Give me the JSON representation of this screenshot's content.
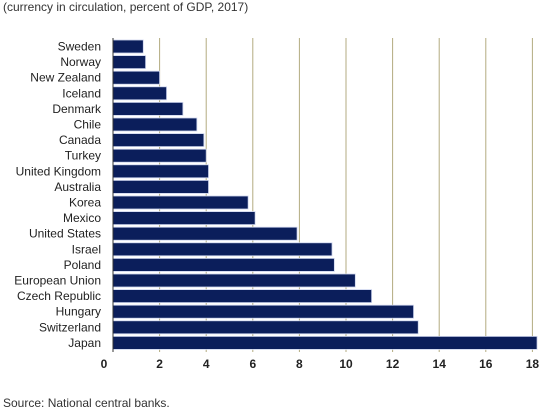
{
  "chart_data": {
    "type": "bar",
    "orientation": "horizontal",
    "title": "",
    "subtitle": "(currency in circulation, percent of GDP, 2017)",
    "source": "Source: National central banks.",
    "categories": [
      "Sweden",
      "Norway",
      "New Zealand",
      "Iceland",
      "Denmark",
      "Chile",
      "Canada",
      "Turkey",
      "United Kingdom",
      "Australia",
      "Korea",
      "Mexico",
      "United States",
      "Israel",
      "Poland",
      "European Union",
      "Czech Republic",
      "Hungary",
      "Switzerland",
      "Japan"
    ],
    "values": [
      1.3,
      1.4,
      2.0,
      2.3,
      3.0,
      3.6,
      3.9,
      4.0,
      4.1,
      4.1,
      5.8,
      6.1,
      7.9,
      9.4,
      9.5,
      10.4,
      11.1,
      12.9,
      13.1,
      18.2
    ],
    "xlim": [
      0,
      18.5
    ],
    "xticks": [
      "0",
      "2",
      "4",
      "6",
      "8",
      "10",
      "12",
      "14",
      "16",
      "18"
    ],
    "xlabel": "",
    "ylabel": "",
    "grid": "vertical",
    "bar_color": "#0b1e5b"
  }
}
